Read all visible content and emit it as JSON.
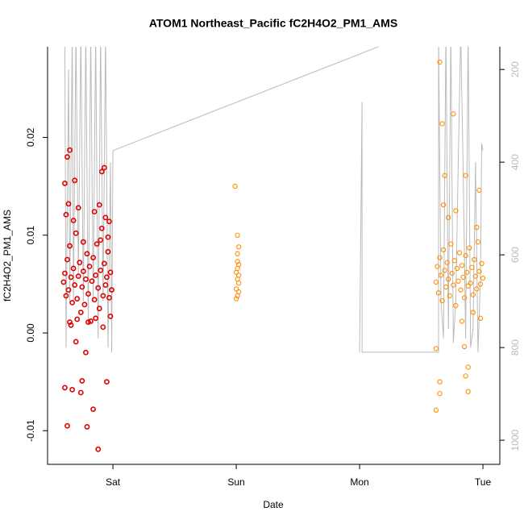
{
  "chart_data": {
    "type": "scatter",
    "title": "ATOM1 Northeast_Pacific fC2H4O2_PM1_AMS",
    "xlabel": "Date",
    "ylabel": "fC2H4O2_PM1_AMS",
    "xlim": [
      -0.53,
      3.137
    ],
    "xticks": [
      {
        "value": 0,
        "label": "Sat"
      },
      {
        "value": 1,
        "label": "Sun"
      },
      {
        "value": 2,
        "label": "Mon"
      },
      {
        "value": 3,
        "label": "Tue"
      }
    ],
    "ylim": [
      -0.01344,
      0.02927
    ],
    "yticks": [
      -0.01,
      {
        "value": 0,
        "label": "0.00"
      },
      0.01,
      0.02
    ],
    "y2lim": [
      1052,
      151
    ],
    "y2ticks": [
      200,
      400,
      600,
      800,
      1000
    ],
    "series": [
      {
        "color": "#e00000",
        "x": [
          -0.4,
          -0.39,
          -0.38,
          -0.37,
          -0.36,
          -0.35,
          -0.34,
          -0.33,
          -0.32,
          -0.31,
          -0.3,
          -0.29,
          -0.28,
          -0.27,
          -0.26,
          -0.25,
          -0.24,
          -0.23,
          -0.22,
          -0.21,
          -0.2,
          -0.19,
          -0.18,
          -0.17,
          -0.16,
          -0.15,
          -0.14,
          -0.13,
          -0.12,
          -0.11,
          -0.1,
          -0.09,
          -0.08,
          -0.07,
          -0.06,
          -0.05,
          -0.04,
          -0.03,
          -0.02,
          -0.01,
          -0.39,
          -0.37,
          -0.37,
          -0.35,
          -0.33,
          -0.31,
          -0.39,
          -0.26,
          -0.25,
          -0.22,
          -0.21,
          -0.16,
          -0.12,
          -0.09,
          -0.07,
          -0.05,
          -0.38,
          -0.36,
          -0.34,
          -0.32,
          -0.3,
          -0.28,
          -0.2,
          -0.15,
          -0.11,
          -0.08,
          -0.06,
          -0.03,
          -0.02,
          -0.1,
          -0.14,
          -0.24,
          -0.29,
          -0.35,
          -0.04
        ],
        "values": [
          0.0052,
          0.0061,
          0.0038,
          0.0075,
          0.0044,
          0.0089,
          0.0057,
          0.0031,
          0.0066,
          0.0049,
          0.0102,
          0.0035,
          0.0058,
          0.0072,
          0.0021,
          0.0047,
          0.0063,
          0.0029,
          0.0055,
          0.0081,
          0.004,
          0.0068,
          0.0012,
          0.0053,
          0.0077,
          0.0034,
          0.0059,
          0.0091,
          0.0046,
          0.0025,
          0.0064,
          0.0107,
          0.0038,
          0.0071,
          0.0049,
          0.0057,
          0.0083,
          0.0036,
          0.0062,
          0.0044,
          -0.0056,
          -0.0095,
          0.018,
          0.0187,
          -0.0058,
          0.0156,
          0.0153,
          -0.0061,
          -0.0049,
          -0.002,
          -0.0096,
          -0.0078,
          -0.0119,
          0.0165,
          0.0169,
          -0.005,
          0.0121,
          0.0132,
          0.0008,
          0.0115,
          -0.0009,
          0.0128,
          0.0011,
          0.0124,
          0.0131,
          0.0006,
          0.0118,
          0.0114,
          0.0017,
          0.0095,
          0.0015,
          0.0093,
          0.0014,
          0.0011,
          0.0098
        ]
      },
      {
        "color": "#ff8c00",
        "x": [
          1.0,
          1.0,
          1.01,
          1.01,
          1.01,
          1.01,
          1.01,
          1.02,
          1.02,
          1.02,
          1.02,
          1.0,
          1.01,
          1.02,
          0.99,
          2.62,
          2.63,
          2.64,
          2.65,
          2.66,
          2.67,
          2.68,
          2.69,
          2.7,
          2.71,
          2.72,
          2.73,
          2.74,
          2.75,
          2.76,
          2.77,
          2.78,
          2.79,
          2.8,
          2.81,
          2.82,
          2.83,
          2.84,
          2.85,
          2.86,
          2.87,
          2.88,
          2.89,
          2.9,
          2.91,
          2.92,
          2.93,
          2.94,
          2.95,
          2.96,
          2.97,
          2.98,
          2.99,
          3.0,
          2.65,
          2.67,
          2.76,
          2.62,
          2.65,
          2.88,
          2.86,
          2.69,
          2.86,
          2.97,
          2.88,
          2.62,
          2.85,
          2.65,
          2.68,
          2.72,
          2.78,
          2.83,
          2.92,
          2.95,
          2.98
        ],
        "values": [
          0.0045,
          0.0062,
          0.0055,
          0.0073,
          0.0038,
          0.0081,
          0.0066,
          0.0051,
          0.0088,
          0.0059,
          0.0042,
          0.0035,
          0.01,
          0.007,
          0.015,
          0.0052,
          0.0068,
          0.0041,
          0.0077,
          0.0059,
          0.0033,
          0.0085,
          0.0064,
          0.0047,
          0.0072,
          0.0055,
          0.0038,
          0.0091,
          0.0061,
          0.0049,
          0.0074,
          0.0028,
          0.0066,
          0.0053,
          0.0082,
          0.0044,
          0.0069,
          0.0057,
          0.0036,
          0.0079,
          0.0062,
          0.0048,
          0.0087,
          0.0051,
          0.0067,
          0.0039,
          0.0075,
          0.0058,
          0.0045,
          0.0093,
          0.0063,
          0.005,
          0.0071,
          0.0056,
          0.0277,
          0.0214,
          0.0224,
          -0.0079,
          -0.0062,
          -0.006,
          -0.0044,
          0.0161,
          0.0161,
          0.0146,
          -0.0035,
          -0.0016,
          -0.0014,
          -0.005,
          0.0131,
          0.0118,
          0.0125,
          0.0012,
          0.0021,
          0.0108,
          0.0015
        ]
      },
      {
        "color": "#bbbbbb",
        "axis": "y2",
        "x": [
          -0.39,
          -0.38,
          -0.36,
          -0.35,
          -0.33,
          -0.32,
          -0.3,
          -0.28,
          -0.26,
          -0.24,
          -0.22,
          -0.2,
          -0.18,
          -0.16,
          -0.14,
          -0.12,
          -0.1,
          -0.08,
          -0.06,
          -0.04,
          -0.02,
          -0.01,
          0.0,
          2.45,
          null,
          2.0,
          2.02,
          2.02,
          2.64,
          2.64,
          2.66,
          2.68,
          2.7,
          2.72,
          2.74,
          2.76,
          2.78,
          2.8,
          2.82,
          2.84,
          2.86,
          2.88,
          2.9,
          2.92,
          2.94,
          2.96,
          2.98,
          2.99,
          3.0
        ],
        "values": [
          140,
          800,
          200,
          700,
          120,
          700,
          120,
          650,
          120,
          700,
          120,
          750,
          120,
          700,
          120,
          780,
          120,
          700,
          120,
          800,
          400,
          810,
          375,
          120,
          null,
          810,
          270,
          810,
          810,
          120,
          700,
          780,
          120,
          760,
          120,
          790,
          700,
          400,
          120,
          420,
          780,
          120,
          800,
          760,
          400,
          810,
          650,
          360,
          375
        ]
      }
    ]
  }
}
